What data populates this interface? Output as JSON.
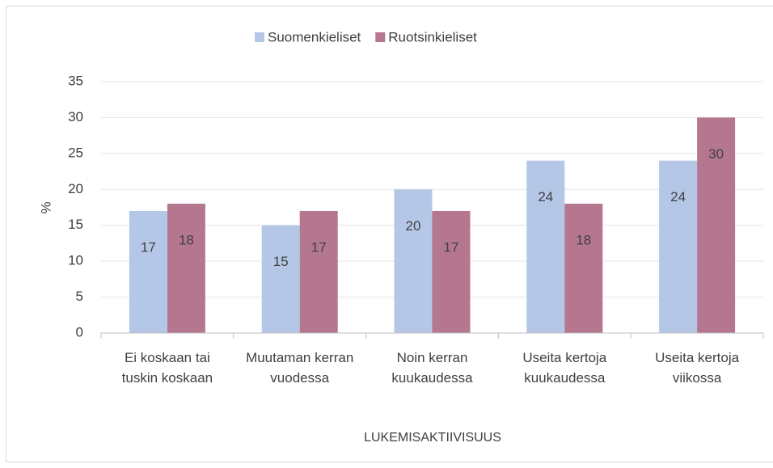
{
  "chart_data": {
    "type": "bar",
    "x_label": "LUKEMISAKTIIVISUUS",
    "y_label": "%",
    "categories": [
      "Ei koskaan tai tuskin koskaan",
      "Muutaman kerran vuodessa",
      "Noin kerran kuukaudessa",
      "Useita kertoja kuukaudessa",
      "Useita kertoja viikossa"
    ],
    "series": [
      {
        "name": "Suomenkieliset",
        "color": "#b4c7e7",
        "values": [
          17,
          15,
          20,
          24,
          24
        ]
      },
      {
        "name": "Ruotsinkieliset",
        "color": "#b4778f",
        "values": [
          18,
          17,
          17,
          18,
          30
        ]
      }
    ],
    "ylim": [
      0,
      35
    ],
    "yticks": [
      0,
      5,
      10,
      15,
      20,
      25,
      30,
      35
    ],
    "grid": true,
    "legend": "top"
  }
}
